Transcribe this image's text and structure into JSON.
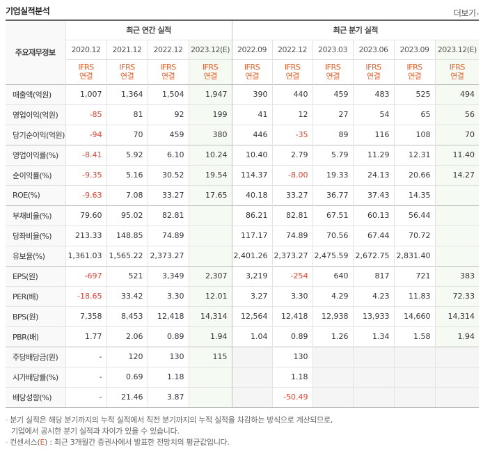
{
  "header": {
    "title": "기업실적분석",
    "more": "더보기"
  },
  "table": {
    "label_header": "주요재무정보",
    "group_annual": "최근 연간 실적",
    "group_quarterly": "최근 분기 실적",
    "periods": [
      "2020.12",
      "2021.12",
      "2022.12",
      "2023.12(E)",
      "2022.09",
      "2022.12",
      "2023.03",
      "2023.06",
      "2023.09",
      "2023.12(E)"
    ],
    "ifrs": "IFRS",
    "consolidated": "연결",
    "rows": [
      {
        "label": "매출액(억원)",
        "values": [
          "1,007",
          "1,364",
          "1,504",
          "1,947",
          "390",
          "440",
          "459",
          "483",
          "525",
          "494"
        ]
      },
      {
        "label": "영업이익(억원)",
        "values": [
          "-85",
          "81",
          "92",
          "199",
          "41",
          "12",
          "27",
          "54",
          "65",
          "56"
        ]
      },
      {
        "label": "당기순이익(억원)",
        "values": [
          "-94",
          "70",
          "459",
          "380",
          "446",
          "-35",
          "89",
          "116",
          "108",
          "70"
        ]
      },
      {
        "label": "영업이익률(%)",
        "values": [
          "-8.41",
          "5.92",
          "6.10",
          "10.24",
          "10.40",
          "2.79",
          "5.79",
          "11.29",
          "12.31",
          "11.40"
        ]
      },
      {
        "label": "순이익률(%)",
        "values": [
          "-9.35",
          "5.16",
          "30.52",
          "19.54",
          "114.37",
          "-8.00",
          "19.33",
          "24.13",
          "20.66",
          "14.27"
        ]
      },
      {
        "label": "ROE(%)",
        "values": [
          "-9.63",
          "7.08",
          "33.27",
          "17.65",
          "40.18",
          "33.27",
          "36.77",
          "37.43",
          "14.35",
          ""
        ]
      },
      {
        "label": "부채비율(%)",
        "values": [
          "79.60",
          "95.02",
          "82.81",
          "",
          "86.21",
          "82.81",
          "67.51",
          "60.13",
          "56.44",
          ""
        ]
      },
      {
        "label": "당좌비율(%)",
        "values": [
          "213.33",
          "148.85",
          "74.89",
          "",
          "117.17",
          "74.89",
          "70.56",
          "67.44",
          "70.72",
          ""
        ]
      },
      {
        "label": "유보율(%)",
        "values": [
          "1,361.03",
          "1,565.22",
          "2,373.27",
          "",
          "2,401.26",
          "2,373.27",
          "2,475.59",
          "2,672.75",
          "2,831.40",
          ""
        ]
      },
      {
        "label": "EPS(원)",
        "values": [
          "-697",
          "521",
          "3,349",
          "2,307",
          "3,219",
          "-254",
          "640",
          "817",
          "721",
          "383"
        ]
      },
      {
        "label": "PER(배)",
        "values": [
          "-18.65",
          "33.42",
          "3.30",
          "12.01",
          "3.27",
          "3.30",
          "4.29",
          "4.23",
          "11.83",
          "72.33"
        ]
      },
      {
        "label": "BPS(원)",
        "values": [
          "7,358",
          "8,453",
          "12,418",
          "14,314",
          "12,564",
          "12,418",
          "12,938",
          "13,933",
          "14,660",
          "14,314"
        ]
      },
      {
        "label": "PBR(배)",
        "values": [
          "1.77",
          "2.06",
          "0.89",
          "1.94",
          "1.04",
          "0.89",
          "1.26",
          "1.34",
          "1.58",
          "1.94"
        ]
      },
      {
        "label": "주당배당금(원)",
        "values": [
          "-",
          "120",
          "130",
          "115",
          "",
          "130",
          "",
          "",
          "",
          ""
        ]
      },
      {
        "label": "시가배당률(%)",
        "values": [
          "-",
          "0.69",
          "1.18",
          "",
          "",
          "1.18",
          "",
          "",
          "",
          ""
        ]
      },
      {
        "label": "배당성향(%)",
        "values": [
          "-",
          "21.46",
          "3.87",
          "",
          "",
          "-50.49",
          "",
          "",
          "",
          ""
        ]
      }
    ]
  },
  "notes": {
    "line1": "분기 실적은 해당 분기까지의 누적 실적에서 직전 분기까지의 누적 실적을 차감하는 방식으로 계산되므로,",
    "line2": "기업에서 공시한 분기 실적과 차이가 있을 수 있습니다.",
    "line3_pre": "컨센서스(",
    "line3_e": "E",
    "line3_post": ") : 최근 3개월간 증권사에서 발표한 전망치의 평균값입니다."
  },
  "colors": {
    "negative": "#e8412f",
    "ifrs": "#e8642f",
    "estimate_bg": "#f5faf3",
    "empty_bg": "#f5f5f5"
  }
}
